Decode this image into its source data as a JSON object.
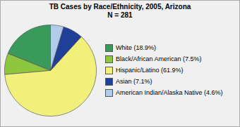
{
  "chart_data": {
    "type": "pie",
    "title": "TB Cases by Race/Ethnicity, 2005, Arizona",
    "subtitle": "N = 281",
    "categories": [
      "White (18.9%)",
      "Black/African American (7.5%)",
      "Hispanic/Latino (61.9%)",
      "Asian (7.1%)",
      "American Indian/Alaska Native (4.6%)"
    ],
    "values": [
      18.9,
      7.5,
      61.9,
      7.1,
      4.6
    ],
    "colors": [
      "#3a9a5c",
      "#8dc63f",
      "#f0f07a",
      "#1f3f99",
      "#b0cce8"
    ],
    "legend": "right"
  }
}
